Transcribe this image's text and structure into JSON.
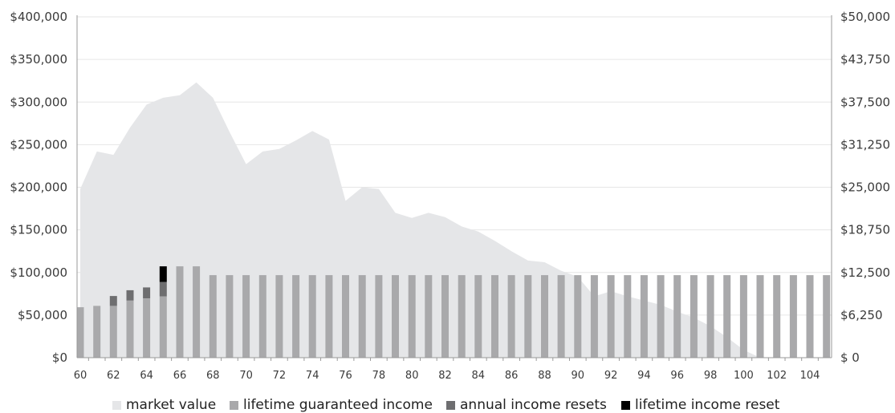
{
  "chart_data": {
    "type": "bar",
    "title": "",
    "xlabel": "",
    "ylabel": "",
    "ylim": [
      0,
      400000
    ],
    "y2lim": [
      0,
      50000
    ],
    "y_ticks": [
      "$0",
      "$50,000",
      "$100,000",
      "$150,000",
      "$200,000",
      "$250,000",
      "$300,000",
      "$350,000",
      "$400,000"
    ],
    "y2_ticks": [
      "$ 0",
      "$6,250",
      "$12,500",
      "$18,750",
      "$25,000",
      "$31,250",
      "$37,500",
      "$43,750",
      "$50,000"
    ],
    "x_tick_labels": [
      "60",
      "62",
      "64",
      "66",
      "68",
      "70",
      "72",
      "74",
      "76",
      "78",
      "80",
      "82",
      "84",
      "86",
      "88",
      "90",
      "92",
      "94",
      "96",
      "98",
      "100",
      "102",
      "104"
    ],
    "grid": true,
    "legend_position": "bottom",
    "x": [
      60,
      61,
      62,
      63,
      64,
      65,
      66,
      67,
      68,
      69,
      70,
      71,
      72,
      73,
      74,
      75,
      76,
      77,
      78,
      79,
      80,
      81,
      82,
      83,
      84,
      85,
      86,
      87,
      88,
      89,
      90,
      91,
      92,
      93,
      94,
      95,
      96,
      97,
      98,
      99,
      100,
      101,
      102,
      103,
      104,
      105
    ],
    "series": [
      {
        "name": "market value",
        "type": "area",
        "axis": "left",
        "color": "#e5e6e8",
        "values": [
          198000,
          242000,
          238000,
          270000,
          297000,
          305000,
          308000,
          323000,
          305000,
          265000,
          227000,
          242000,
          245000,
          255000,
          266000,
          256000,
          184000,
          200000,
          198000,
          170000,
          164000,
          170000,
          165000,
          154000,
          148000,
          137000,
          125000,
          114000,
          112000,
          102000,
          95000,
          72000,
          78000,
          72000,
          67000,
          62000,
          54000,
          47000,
          37000,
          24000,
          9000,
          0,
          0,
          0,
          0,
          0
        ]
      },
      {
        "name": "lifetime guaranteed income",
        "type": "bar",
        "axis": "right",
        "color": "#a9a9ab",
        "values": [
          7400,
          7600,
          7600,
          8400,
          8700,
          9000,
          13400,
          13400,
          12100,
          12100,
          12100,
          12100,
          12100,
          12100,
          12100,
          12100,
          12100,
          12100,
          12100,
          12100,
          12100,
          12100,
          12100,
          12100,
          12100,
          12100,
          12100,
          12100,
          12100,
          12100,
          12100,
          12100,
          12100,
          12100,
          12100,
          12100,
          12100,
          12100,
          12100,
          12100,
          12100,
          12100,
          12100,
          12100,
          12100,
          12100
        ]
      },
      {
        "name": "annual income resets",
        "type": "bar",
        "axis": "right",
        "color": "#6e6e70",
        "values": [
          0,
          0,
          1450,
          1500,
          1600,
          2100,
          0,
          0,
          0,
          0,
          0,
          0,
          0,
          0,
          0,
          0,
          0,
          0,
          0,
          0,
          0,
          0,
          0,
          0,
          0,
          0,
          0,
          0,
          0,
          0,
          0,
          0,
          0,
          0,
          0,
          0,
          0,
          0,
          0,
          0,
          0,
          0,
          0,
          0,
          0,
          0
        ]
      },
      {
        "name": "lifetime income reset",
        "type": "bar",
        "axis": "right",
        "color": "#000000",
        "values": [
          0,
          0,
          0,
          0,
          0,
          2300,
          0,
          0,
          0,
          0,
          0,
          0,
          0,
          0,
          0,
          0,
          0,
          0,
          0,
          0,
          0,
          0,
          0,
          0,
          0,
          0,
          0,
          0,
          0,
          0,
          0,
          0,
          0,
          0,
          0,
          0,
          0,
          0,
          0,
          0,
          0,
          0,
          0,
          0,
          0,
          0
        ]
      }
    ]
  }
}
